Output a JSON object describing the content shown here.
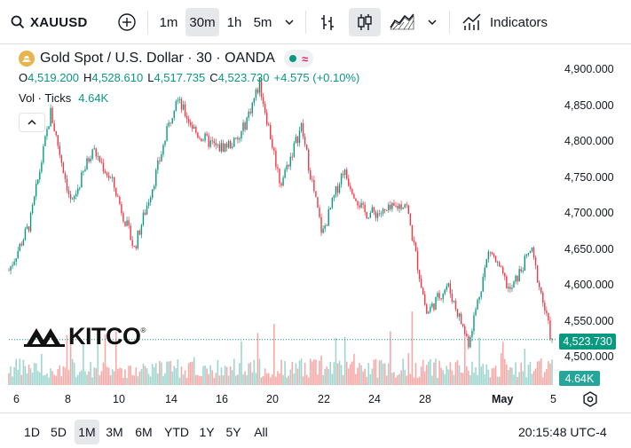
{
  "toolbar": {
    "symbol": "XAUUSD",
    "intervals": [
      "1m",
      "30m",
      "1h",
      "5m"
    ],
    "active_interval": "30m",
    "indicators_label": "Indicators"
  },
  "legend": {
    "title": "Gold Spot / U.S. Dollar · 30 · OANDA",
    "open_key": "O",
    "open": "4,519.200",
    "high_key": "H",
    "high": "4,528.610",
    "low_key": "L",
    "low": "4,517.735",
    "close_key": "C",
    "close": "4,523.730",
    "change": "+4.575 (+0.10%)",
    "vol_label": "Vol · Ticks",
    "vol_value": "4.64K"
  },
  "price_scale": {
    "labels": [
      "4,900.000",
      "4,850.000",
      "4,800.000",
      "4,750.000",
      "4,700.000",
      "4,650.000",
      "4,600.000",
      "4,550.000",
      "4,500.000"
    ],
    "current_price": "4,523.730",
    "current_volume": "4.64K"
  },
  "date_axis": {
    "labels": [
      "6",
      "8",
      "10",
      "14",
      "16",
      "20",
      "22",
      "24",
      "28",
      "May",
      "5"
    ]
  },
  "watermark": {
    "text": "KITCO",
    "reg": "®"
  },
  "bottom_bar": {
    "ranges": [
      "1D",
      "5D",
      "1M",
      "3M",
      "6M",
      "YTD",
      "1Y",
      "5Y",
      "All"
    ],
    "active_range": "1M",
    "clock": "20:15:48 UTC-4"
  },
  "colors": {
    "up": "#089981",
    "down": "#f23645",
    "vol_up": "#9fd6cf",
    "vol_down": "#f7a9a7"
  },
  "chart_data": {
    "type": "candlestick",
    "symbol": "XAUUSD",
    "interval": "30",
    "ylim": [
      4490,
      4920
    ],
    "x_ticks": [
      "6",
      "8",
      "10",
      "14",
      "16",
      "20",
      "22",
      "24",
      "28",
      "May",
      "5"
    ],
    "close_path": [
      {
        "t": "6",
        "price": 4620
      },
      {
        "t": "7",
        "price": 4685
      },
      {
        "t": "8",
        "price": 4840
      },
      {
        "t": "9",
        "price": 4710
      },
      {
        "t": "9",
        "price": 4790
      },
      {
        "t": "10",
        "price": 4740
      },
      {
        "t": "11",
        "price": 4650
      },
      {
        "t": "12",
        "price": 4750
      },
      {
        "t": "14",
        "price": 4860
      },
      {
        "t": "15",
        "price": 4810
      },
      {
        "t": "16",
        "price": 4790
      },
      {
        "t": "17",
        "price": 4800
      },
      {
        "t": "18",
        "price": 4880
      },
      {
        "t": "19",
        "price": 4740
      },
      {
        "t": "20",
        "price": 4820
      },
      {
        "t": "21",
        "price": 4670
      },
      {
        "t": "22",
        "price": 4760
      },
      {
        "t": "23",
        "price": 4700
      },
      {
        "t": "24",
        "price": 4700
      },
      {
        "t": "27",
        "price": 4715
      },
      {
        "t": "28",
        "price": 4560
      },
      {
        "t": "29",
        "price": 4600
      },
      {
        "t": "30",
        "price": 4520
      },
      {
        "t": "May 1",
        "price": 4650
      },
      {
        "t": "May 2",
        "price": 4590
      },
      {
        "t": "May 4",
        "price": 4650
      },
      {
        "t": "May 5",
        "price": 4520
      }
    ],
    "last": {
      "open": 4519.2,
      "high": 4528.61,
      "low": 4517.735,
      "close": 4523.73,
      "volume": "4.64K"
    }
  }
}
